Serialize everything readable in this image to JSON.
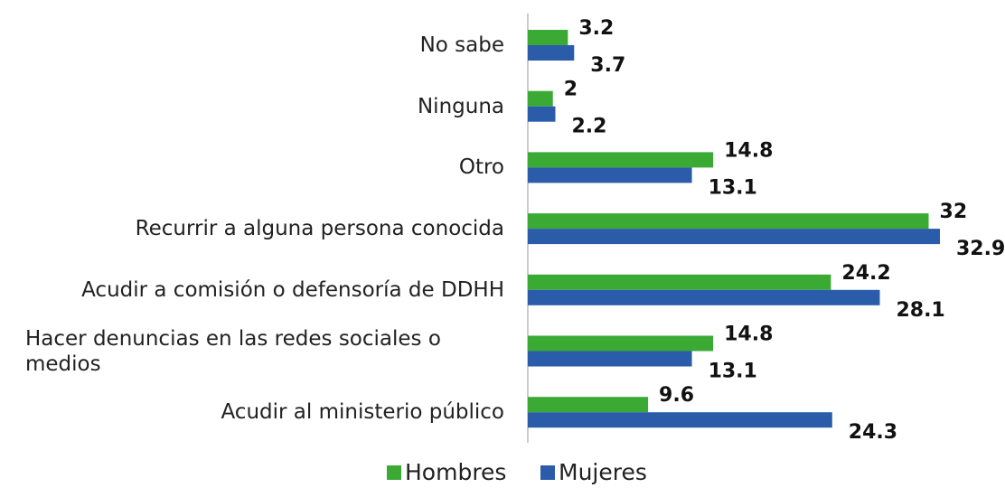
{
  "chart_data": {
    "type": "bar",
    "orientation": "horizontal",
    "categories": [
      "No sabe",
      "Ninguna",
      "Otro",
      "Recurrir a alguna persona conocida",
      "Acudir a comisión o defensoría de DDHH",
      "Hacer denuncias en las redes sociales o medios",
      "Acudir al ministerio público"
    ],
    "series": [
      {
        "name": "Hombres",
        "color": "#3aaa35",
        "values": [
          3.2,
          2,
          14.8,
          32,
          24.2,
          14.8,
          9.6
        ]
      },
      {
        "name": "Mujeres",
        "color": "#2a5caa",
        "values": [
          3.7,
          2.2,
          13.1,
          32.9,
          28.1,
          13.1,
          24.3
        ]
      }
    ],
    "legend": "bottom"
  }
}
